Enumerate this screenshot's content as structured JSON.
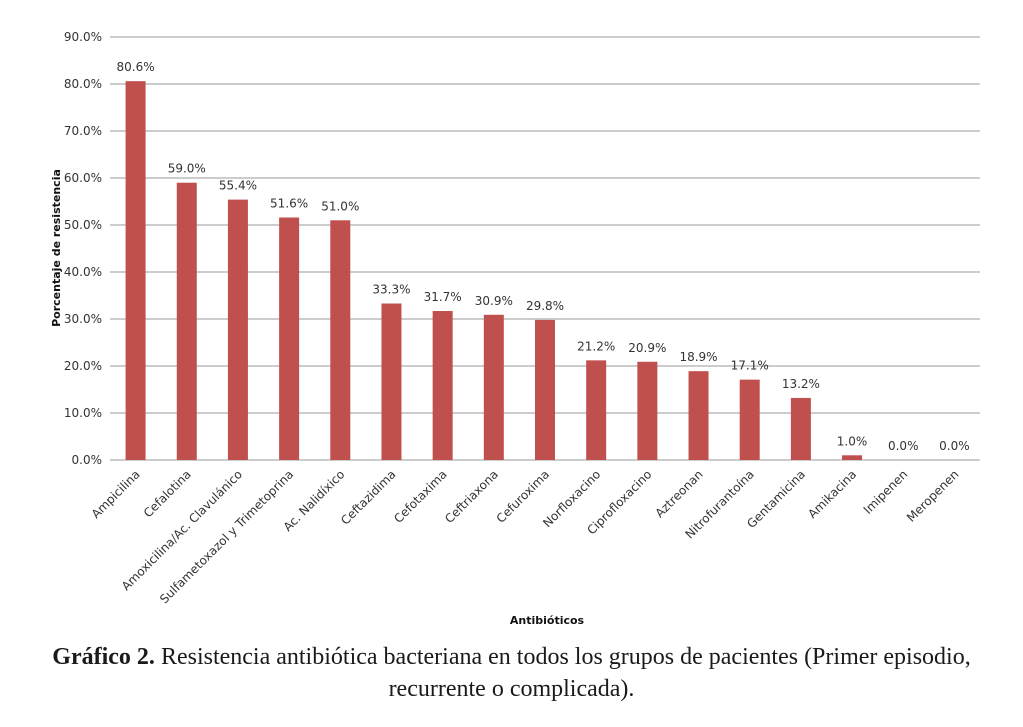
{
  "chart_data": {
    "type": "bar",
    "categories": [
      "Ampicilina",
      "Cefalotina",
      "Amoxicilina/Ac. Clavulánico",
      "Sulfametoxazol y Trimetoprina",
      "Ac. Nalidíxico",
      "Ceftazidima",
      "Cefotaxima",
      "Ceftriaxona",
      "Cefuroxima",
      "Norfloxacino",
      "Ciprofloxacino",
      "Aztreonan",
      "Nitrofurantoína",
      "Gentamicina",
      "Amikacina",
      "Imipenen",
      "Meropenen"
    ],
    "values": [
      80.6,
      59.0,
      55.4,
      51.6,
      51.0,
      33.3,
      31.7,
      30.9,
      29.8,
      21.2,
      20.9,
      18.9,
      17.1,
      13.2,
      1.0,
      0.0,
      0.0
    ],
    "data_labels": [
      "80.6%",
      "59.0%",
      "55.4%",
      "51.6%",
      "51.0%",
      "33.3%",
      "31.7%",
      "30.9%",
      "29.8%",
      "21.2%",
      "20.9%",
      "18.9%",
      "17.1%",
      "13.2%",
      "1.0%",
      "0.0%",
      "0.0%"
    ],
    "yticks": [
      "0.0%",
      "10.0%",
      "20.0%",
      "30.0%",
      "40.0%",
      "50.0%",
      "60.0%",
      "70.0%",
      "80.0%",
      "90.0%"
    ],
    "ylim": [
      0,
      90
    ],
    "xlabel": "Antibióticos",
    "ylabel": "Porcentaje de resistencia",
    "bar_color": "#c0504d",
    "grid": true
  },
  "caption": {
    "label": "Gráfico 2.",
    "text": " Resistencia antibiótica bacteriana en todos los grupos de pacientes (Primer episodio, recurrente o complicada)."
  }
}
